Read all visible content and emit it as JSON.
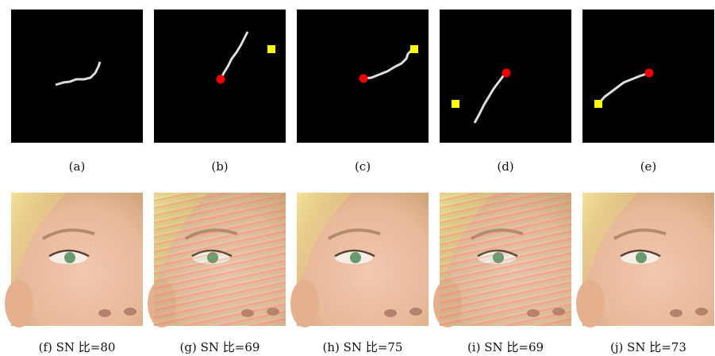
{
  "panels": [
    {
      "caption": "(a)"
    },
    {
      "caption": "(b)"
    },
    {
      "caption": "(c)"
    },
    {
      "caption": "(d)"
    },
    {
      "caption": "(e)"
    },
    {
      "caption": "(f) SN 比=80"
    },
    {
      "caption": "(g) SN 比=69"
    },
    {
      "caption": "(h) SN 比=75"
    },
    {
      "caption": "(i) SN 比=69"
    },
    {
      "caption": "(j) SN 比=73"
    }
  ]
}
